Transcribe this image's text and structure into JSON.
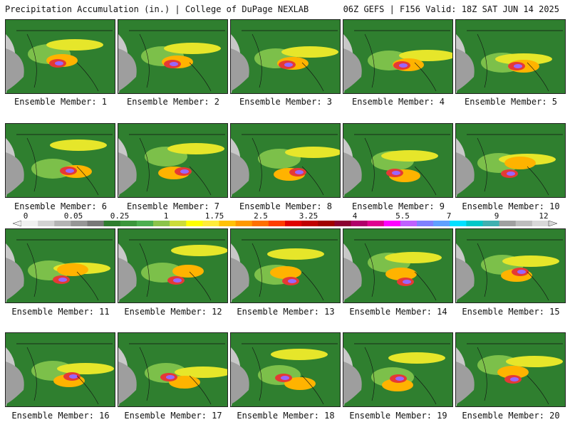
{
  "header": {
    "title": "Precipitation Accumulation (in.) | College of DuPage NEXLAB",
    "valid": "06Z GEFS | F156 Valid: 18Z SAT JUN 14 2025"
  },
  "panels": [
    {
      "caption": "Ensemble Member: 1",
      "map_icon": "precip-map-image"
    },
    {
      "caption": "Ensemble Member: 2",
      "map_icon": "precip-map-image"
    },
    {
      "caption": "Ensemble Member: 3",
      "map_icon": "precip-map-image"
    },
    {
      "caption": "Ensemble Member: 4",
      "map_icon": "precip-map-image"
    },
    {
      "caption": "Ensemble Member: 5",
      "map_icon": "precip-map-image"
    },
    {
      "caption": "Ensemble Member: 6",
      "map_icon": "precip-map-image"
    },
    {
      "caption": "Ensemble Member: 7",
      "map_icon": "precip-map-image"
    },
    {
      "caption": "Ensemble Member: 8",
      "map_icon": "precip-map-image"
    },
    {
      "caption": "Ensemble Member: 9",
      "map_icon": "precip-map-image"
    },
    {
      "caption": "Ensemble Member: 10",
      "map_icon": "precip-map-image"
    },
    {
      "caption": "Ensemble Member: 11",
      "map_icon": "precip-map-image"
    },
    {
      "caption": "Ensemble Member: 12",
      "map_icon": "precip-map-image"
    },
    {
      "caption": "Ensemble Member: 13",
      "map_icon": "precip-map-image"
    },
    {
      "caption": "Ensemble Member: 14",
      "map_icon": "precip-map-image"
    },
    {
      "caption": "Ensemble Member: 15",
      "map_icon": "precip-map-image"
    },
    {
      "caption": "Ensemble Member: 16",
      "map_icon": "precip-map-image"
    },
    {
      "caption": "Ensemble Member: 17",
      "map_icon": "precip-map-image"
    },
    {
      "caption": "Ensemble Member: 18",
      "map_icon": "precip-map-image"
    },
    {
      "caption": "Ensemble Member: 19",
      "map_icon": "precip-map-image"
    },
    {
      "caption": "Ensemble Member: 20",
      "map_icon": "precip-map-image"
    }
  ],
  "colorbar": {
    "labels": [
      "0",
      "0.05",
      "0.25",
      "1",
      "1.75",
      "2.5",
      "3.25",
      "4",
      "5.5",
      "7",
      "9",
      "12"
    ],
    "colors": [
      "#f0f0f0",
      "#d2d2d2",
      "#b4b4b4",
      "#969696",
      "#787878",
      "#2e7d2e",
      "#3c963c",
      "#4caf50",
      "#8bc34a",
      "#cddc39",
      "#ffff00",
      "#ffeb3b",
      "#ffc107",
      "#ff9800",
      "#ff6f00",
      "#ff3d00",
      "#e00000",
      "#c00000",
      "#a00000",
      "#8b0030",
      "#b0006a",
      "#e00090",
      "#ff00ff",
      "#c060ff",
      "#8080ff",
      "#60a0ff",
      "#00e0ff",
      "#00c8c8",
      "#40b0b0",
      "#a0a0a0",
      "#bdbdbd",
      "#d8d8d8"
    ]
  }
}
